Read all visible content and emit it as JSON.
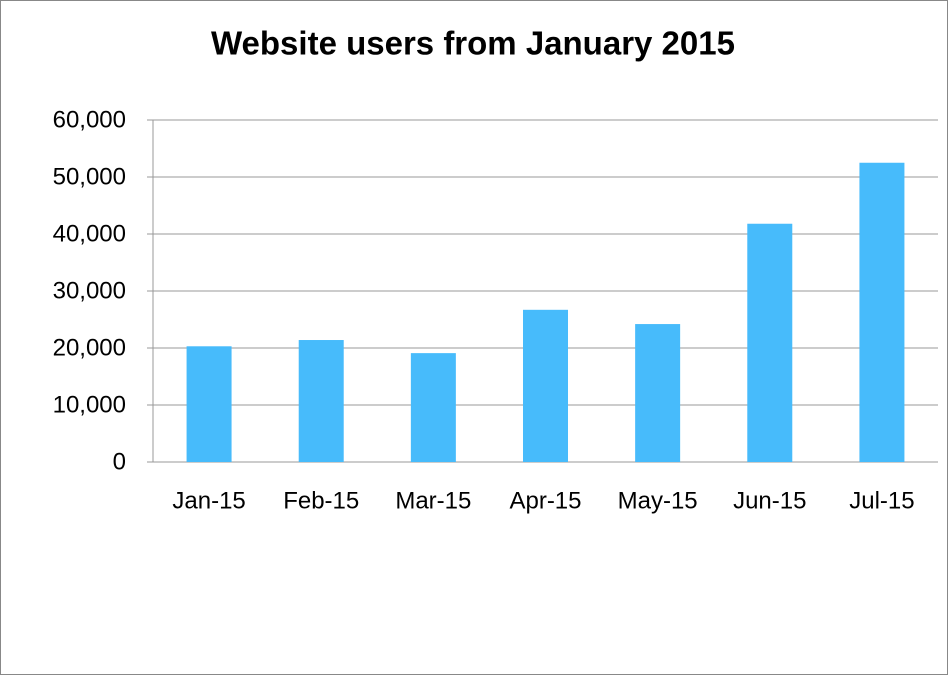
{
  "chart_data": {
    "type": "bar",
    "title": "Website users from January 2015",
    "categories": [
      "Jan-15",
      "Feb-15",
      "Mar-15",
      "Apr-15",
      "May-15",
      "Jun-15",
      "Jul-15"
    ],
    "values": [
      20300,
      21400,
      19100,
      26700,
      24200,
      41800,
      52500
    ],
    "color": "#47bbfb",
    "ylim": [
      0,
      60000
    ],
    "yticks": [
      0,
      {
        "value": 10000,
        "label": "10,000"
      },
      {
        "value": 20000,
        "label": "20,000"
      },
      {
        "value": 30000,
        "label": "30,000"
      },
      {
        "value": 40000,
        "label": "40,000"
      },
      {
        "value": 50000,
        "label": "50,000"
      },
      {
        "value": 60000,
        "label": "60,000"
      }
    ],
    "grid": true
  }
}
